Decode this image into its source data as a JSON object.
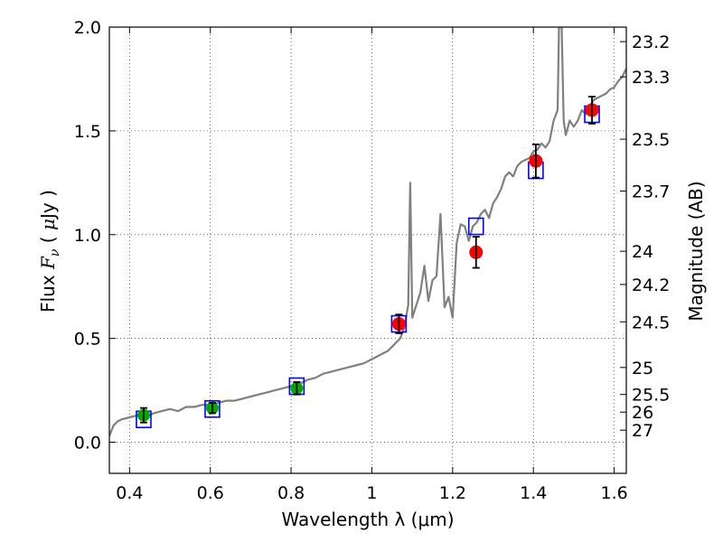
{
  "chart_data": {
    "type": "scatter",
    "xlabel": "Wavelength  λ (μm)",
    "ylabel": "Flux  F_ν  ( μJy )",
    "ylabel_parts": {
      "pre": "Flux  ",
      "var": "F",
      "sub": "ν",
      "mid": "  ( ",
      "mu": "μ",
      "post": "Jy )"
    },
    "ylabel_right": "Magnitude (AB)",
    "xlim": [
      0.35,
      1.63
    ],
    "ylim": [
      -0.15,
      2.0
    ],
    "xticks": [
      0.4,
      0.6,
      0.8,
      1.0,
      1.2,
      1.4,
      1.6
    ],
    "xtick_labels": [
      "0.4",
      "0.6",
      "0.8",
      "1",
      "1.2",
      "1.4",
      "1.6"
    ],
    "yticks": [
      0.0,
      0.5,
      1.0,
      1.5,
      2.0
    ],
    "ytick_labels": [
      "0.0",
      "0.5",
      "1.0",
      "1.5",
      "2.0"
    ],
    "right_ticks": [
      {
        "label": "23.2",
        "flux": 1.93
      },
      {
        "label": "23.3",
        "flux": 1.76
      },
      {
        "label": "23.5",
        "flux": 1.46
      },
      {
        "label": "23.7",
        "flux": 1.21
      },
      {
        "label": "24",
        "flux": 0.92
      },
      {
        "label": "24.2",
        "flux": 0.76
      },
      {
        "label": "24.5",
        "flux": 0.58
      },
      {
        "label": "25",
        "flux": 0.36
      },
      {
        "label": "25.5",
        "flux": 0.23
      },
      {
        "label": "26",
        "flux": 0.145
      },
      {
        "label": "27",
        "flux": 0.058
      }
    ],
    "grid": true,
    "colors": {
      "spectrum": "#808080",
      "model_box": "#0000ff",
      "ground": "#00aa00",
      "space": "#ff0000",
      "errorbar": "#000000"
    },
    "spectrum": {
      "name": "",
      "x": [
        0.35,
        0.36,
        0.37,
        0.38,
        0.4,
        0.42,
        0.44,
        0.46,
        0.48,
        0.5,
        0.52,
        0.54,
        0.56,
        0.58,
        0.6,
        0.62,
        0.64,
        0.66,
        0.68,
        0.7,
        0.72,
        0.74,
        0.76,
        0.78,
        0.8,
        0.82,
        0.84,
        0.86,
        0.88,
        0.9,
        0.92,
        0.94,
        0.96,
        0.98,
        1.0,
        1.02,
        1.04,
        1.05,
        1.06,
        1.07,
        1.08,
        1.09,
        1.095,
        1.1,
        1.11,
        1.12,
        1.13,
        1.14,
        1.15,
        1.16,
        1.17,
        1.18,
        1.19,
        1.2,
        1.21,
        1.22,
        1.23,
        1.24,
        1.25,
        1.26,
        1.27,
        1.28,
        1.29,
        1.3,
        1.31,
        1.32,
        1.33,
        1.34,
        1.35,
        1.36,
        1.37,
        1.38,
        1.39,
        1.4,
        1.41,
        1.42,
        1.43,
        1.44,
        1.45,
        1.46,
        1.465,
        1.47,
        1.475,
        1.48,
        1.49,
        1.5,
        1.51,
        1.52,
        1.53,
        1.54,
        1.55,
        1.56,
        1.57,
        1.58,
        1.59,
        1.6,
        1.61,
        1.62,
        1.63
      ],
      "y": [
        0.03,
        0.08,
        0.1,
        0.11,
        0.12,
        0.13,
        0.12,
        0.14,
        0.15,
        0.16,
        0.15,
        0.17,
        0.17,
        0.18,
        0.18,
        0.19,
        0.2,
        0.2,
        0.21,
        0.22,
        0.23,
        0.24,
        0.25,
        0.26,
        0.27,
        0.28,
        0.3,
        0.31,
        0.33,
        0.34,
        0.35,
        0.36,
        0.37,
        0.38,
        0.4,
        0.42,
        0.44,
        0.46,
        0.48,
        0.5,
        0.55,
        0.66,
        1.25,
        0.6,
        0.66,
        0.72,
        0.85,
        0.68,
        0.78,
        0.8,
        1.1,
        0.65,
        0.7,
        0.6,
        0.96,
        1.05,
        1.04,
        0.97,
        1.04,
        1.06,
        1.1,
        1.12,
        1.08,
        1.15,
        1.18,
        1.22,
        1.28,
        1.3,
        1.28,
        1.33,
        1.35,
        1.36,
        1.37,
        1.4,
        1.41,
        1.44,
        1.42,
        1.45,
        1.55,
        1.6,
        2.2,
        2.0,
        1.55,
        1.48,
        1.55,
        1.52,
        1.55,
        1.6,
        1.58,
        1.62,
        1.65,
        1.66,
        1.67,
        1.68,
        1.7,
        1.71,
        1.74,
        1.76,
        1.8
      ]
    },
    "model": {
      "name": "",
      "x": [
        0.435,
        0.605,
        0.814,
        1.067,
        1.258,
        1.406,
        1.545
      ],
      "y": [
        0.11,
        0.16,
        0.27,
        0.57,
        1.04,
        1.31,
        1.58
      ]
    },
    "ground_points": {
      "name": "",
      "x": [
        0.435,
        0.605,
        0.814
      ],
      "y": [
        0.13,
        0.165,
        0.26
      ],
      "err": [
        0.035,
        0.025,
        0.03
      ]
    },
    "space_points": {
      "name": "",
      "x": [
        1.067,
        1.258,
        1.406,
        1.545
      ],
      "y": [
        0.57,
        0.915,
        1.355,
        1.6
      ],
      "err": [
        0.045,
        0.075,
        0.08,
        0.065
      ]
    }
  }
}
